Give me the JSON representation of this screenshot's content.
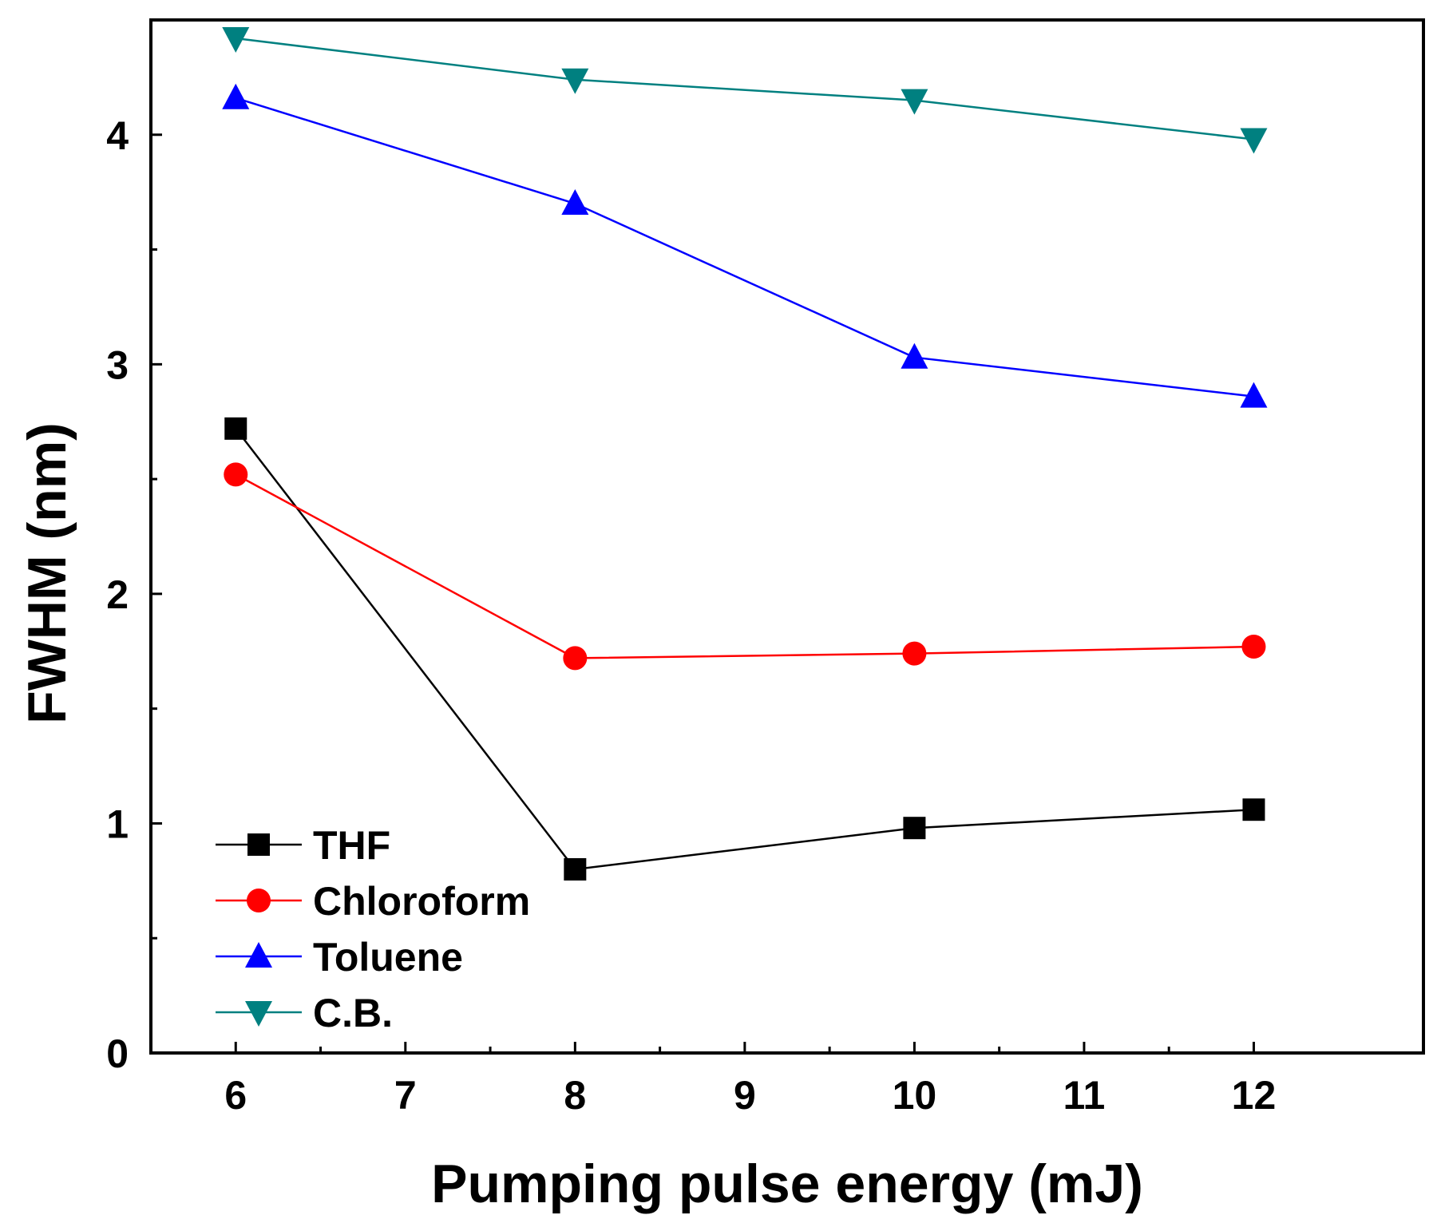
{
  "chart_data": {
    "type": "line",
    "title": "",
    "xlabel": "Pumping pulse energy (mJ)",
    "ylabel": "FWHM (nm)",
    "xlim": [
      5.5,
      13.0
    ],
    "ylim": [
      0,
      4.5
    ],
    "xticks": [
      6,
      7,
      8,
      9,
      10,
      11,
      12
    ],
    "yticks": [
      0,
      1,
      2,
      3,
      4
    ],
    "x_minor_step": 0.5,
    "y_minor_step": 0.5,
    "grid": false,
    "legend_position": "bottom-left",
    "x": [
      6,
      8,
      10,
      12
    ],
    "series": [
      {
        "name": "THF",
        "color": "#000000",
        "marker": "square",
        "values": [
          2.72,
          0.8,
          0.98,
          1.06
        ]
      },
      {
        "name": "Chloroform",
        "color": "#ff0000",
        "marker": "circle",
        "values": [
          2.52,
          1.72,
          1.74,
          1.77
        ]
      },
      {
        "name": "Toluene",
        "color": "#0000ff",
        "marker": "triangle-up",
        "values": [
          4.16,
          3.7,
          3.03,
          2.86
        ]
      },
      {
        "name": "C.B.",
        "color": "#008080",
        "marker": "triangle-down",
        "values": [
          4.42,
          4.24,
          4.15,
          3.98
        ]
      }
    ]
  }
}
